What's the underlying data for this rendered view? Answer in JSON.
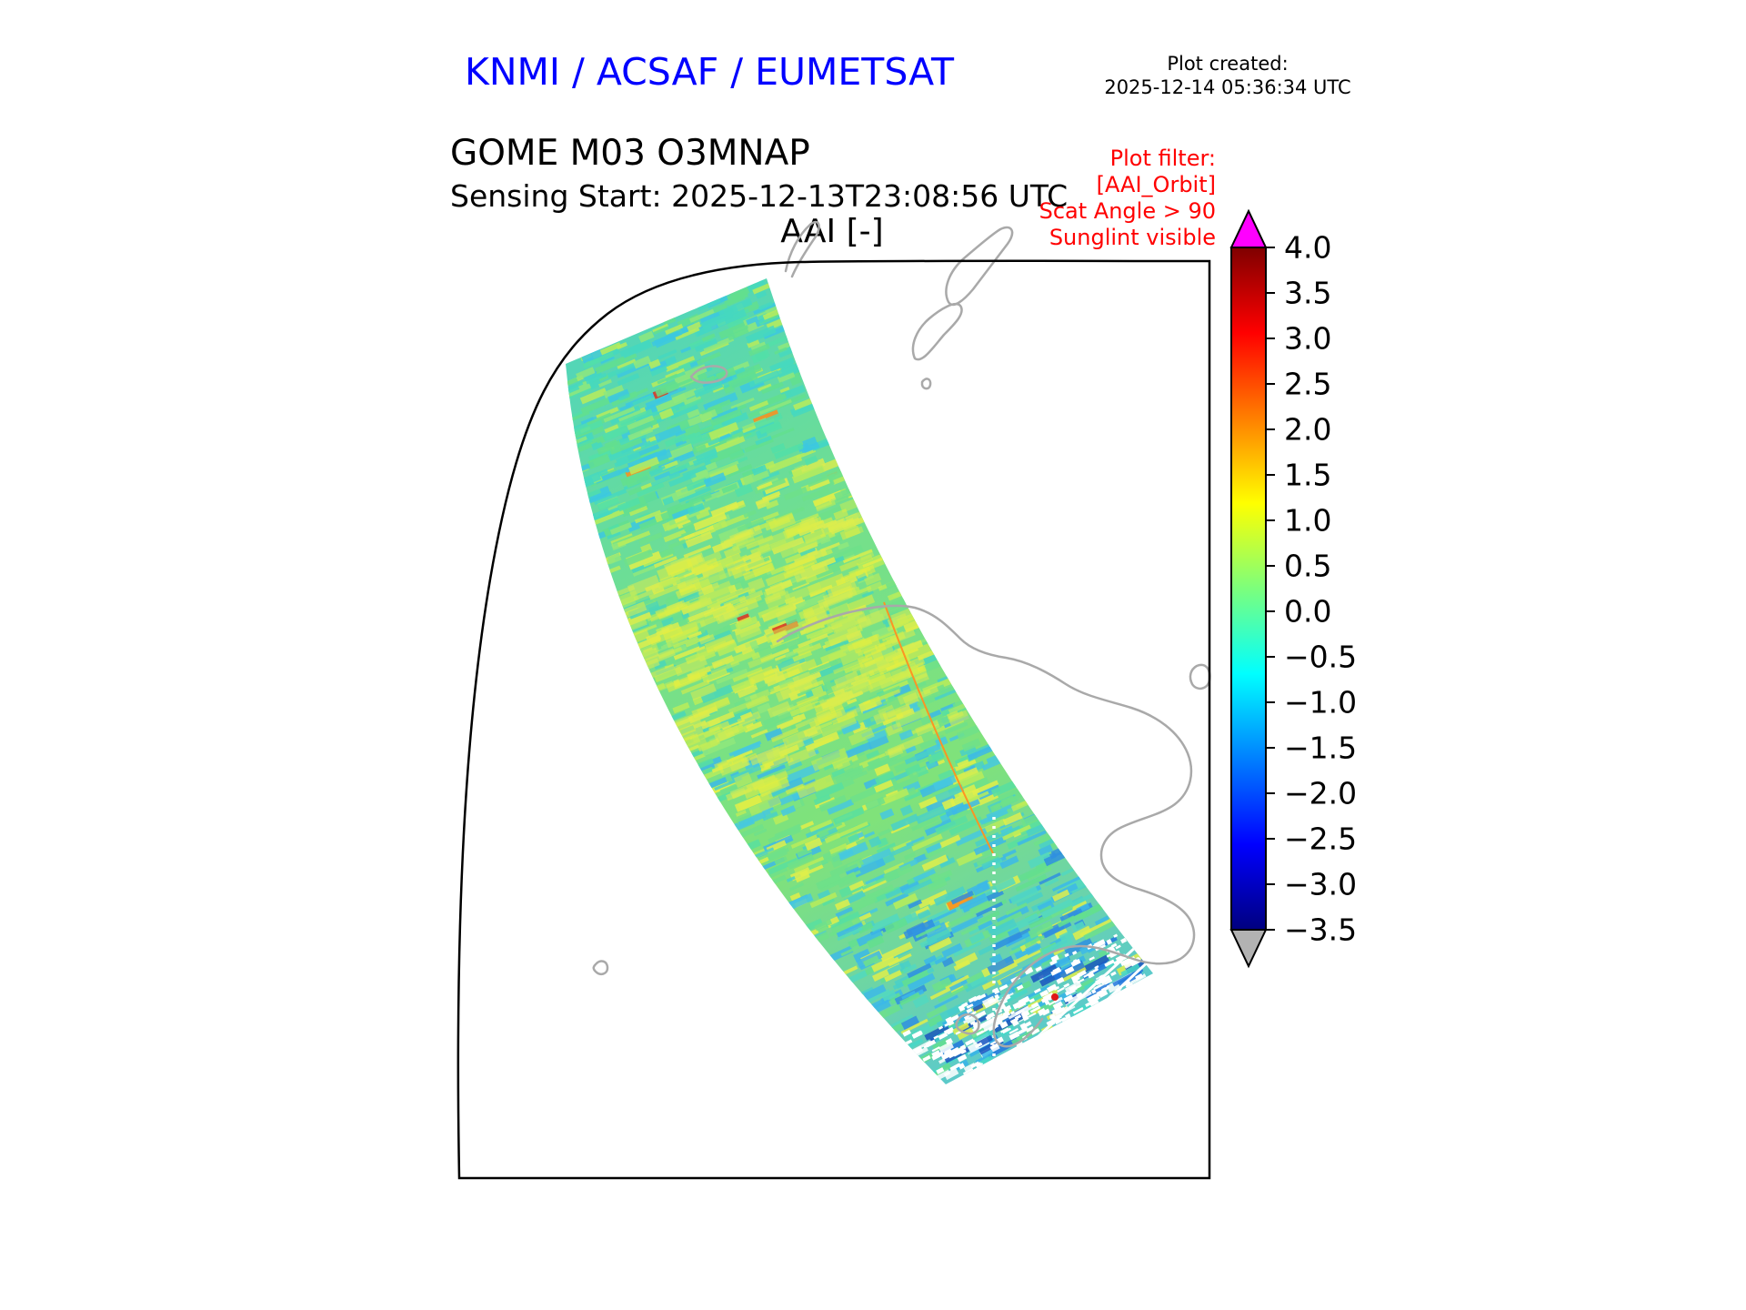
{
  "header": {
    "title": "KNMI / ACSAF / EUMETSAT",
    "title_color": "#0000ff",
    "plot_created_label": "Plot created:",
    "plot_created_value": "2025-12-14 05:36:34 UTC"
  },
  "titles": {
    "product": "GOME M03 O3MNAP",
    "sensing_start": "Sensing Start: 2025-12-13T23:08:56 UTC",
    "quantity": "AAI [-]"
  },
  "plot_filter": {
    "text_color": "#ff0000",
    "lines": [
      "Plot filter:",
      "[AAI_Orbit]",
      "Scat Angle > 90",
      "Sunglint visible"
    ]
  },
  "chart_data": {
    "type": "heatmap",
    "title": "AAI [-]",
    "subtitle": "Absorbing Aerosol Index for one GOME orbit swath over a south-polar map sector",
    "legend_position": "right colorbar",
    "value_range": [
      -3.5,
      4.0
    ],
    "colorbar": {
      "min": -3.5,
      "max": 4.0,
      "ticks": [
        4.0,
        3.5,
        3.0,
        2.5,
        2.0,
        1.5,
        1.0,
        0.5,
        0.0,
        -0.5,
        -1.0,
        -1.5,
        -2.0,
        -2.5,
        -3.0,
        -3.5
      ],
      "tick_labels": [
        "4.0",
        "3.5",
        "3.0",
        "2.5",
        "2.0",
        "1.5",
        "1.0",
        "0.5",
        "0.0",
        "−0.5",
        "−1.0",
        "−1.5",
        "−2.0",
        "−2.5",
        "−3.0",
        "−3.5"
      ],
      "over_arrow_color": "#ff00ff",
      "under_arrow_color": "#b2b2b2",
      "gradient_stops": [
        {
          "t": 0.0,
          "color": "#00007f"
        },
        {
          "t": 0.125,
          "color": "#0000ff"
        },
        {
          "t": 0.25,
          "color": "#007fff"
        },
        {
          "t": 0.375,
          "color": "#00ffff"
        },
        {
          "t": 0.5,
          "color": "#7cff7c"
        },
        {
          "t": 0.625,
          "color": "#ffff00"
        },
        {
          "t": 0.75,
          "color": "#ff7f00"
        },
        {
          "t": 0.875,
          "color": "#ff0000"
        },
        {
          "t": 1.0,
          "color": "#7f0000"
        }
      ]
    },
    "map": {
      "coastline_color": "#a9a9a9",
      "frame_color": "#000000",
      "background": "#ffffff"
    },
    "swath": {
      "summary": "AAI mostly between −1.5 and +1.5: cyan/green at swath start, green-yellow mid-swath, cyan-blue patches and white missing-data speckle near swath end; isolated orange/red outliers",
      "base_gradient": [
        "#54d6b6",
        "#74e08c",
        "#80e27a",
        "#5ccaca"
      ],
      "bands": [
        {
          "s_max": 0.25,
          "colors": [
            "#45d8c0",
            "#45d8c0",
            "#63df8e",
            "#63df8e",
            "#3cc8e0",
            "#8fe87c",
            "#b9ec5a",
            "#52dfa8"
          ]
        },
        {
          "s_max": 0.55,
          "colors": [
            "#6fe08a",
            "#6fe08a",
            "#b9ec5a",
            "#b9ec5a",
            "#e0ee4a",
            "#8fe87c",
            "#49d6b8",
            "#d8ec50"
          ]
        },
        {
          "s_max": 0.8,
          "colors": [
            "#6fe08a",
            "#6fe08a",
            "#49d0c8",
            "#3cb8e8",
            "#b9ec5a",
            "#e0ee4a",
            "#58dfa0",
            "#45c8e0"
          ]
        },
        {
          "s_max": 0.94,
          "colors": [
            "#52d8c0",
            "#3cb8e8",
            "#3cb8e8",
            "#6fe08a",
            "#2f8fe0",
            "#e0ee4a",
            "#49d0c8",
            "#63df8e"
          ]
        },
        {
          "s_max": 1.01,
          "colors": [
            "#ffffff",
            "#ffffff",
            "#35b3e8",
            "#2277dd",
            "#45d8c8",
            "#e0ee4a",
            "#63df8e",
            "#1a55c0"
          ]
        }
      ],
      "mid_yellow_colors": [
        "#d8ec50",
        "#e4ef3f",
        "#c4ec55"
      ],
      "rare": [
        {
          "p": 0.004,
          "color": "#ff8c1a"
        },
        {
          "p": 0.002,
          "color": "#e03020"
        }
      ],
      "missing_color": "#ffffff"
    }
  }
}
